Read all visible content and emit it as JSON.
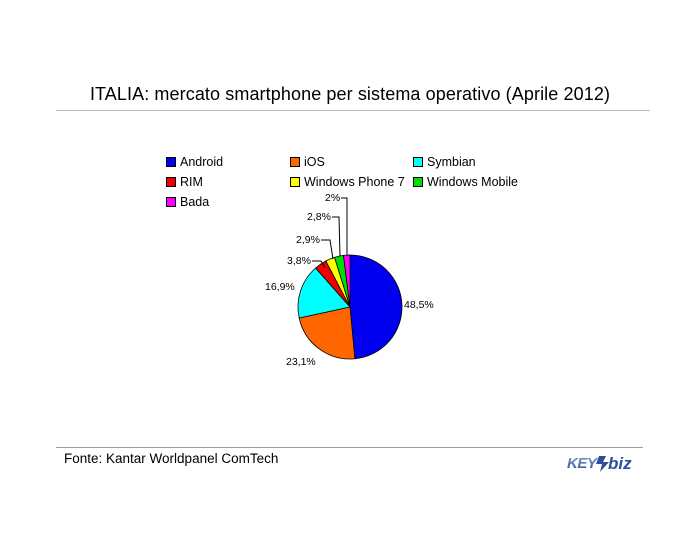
{
  "chart_data": {
    "type": "pie",
    "title": "ITALIA: mercato smartphone per sistema operativo (Aprile 2012)",
    "slices": [
      {
        "label": "Android",
        "value": 48.5,
        "value_label": "48,5%",
        "color": "#0000ee"
      },
      {
        "label": "iOS",
        "value": 23.1,
        "value_label": "23,1%",
        "color": "#ff6600"
      },
      {
        "label": "Symbian",
        "value": 16.9,
        "value_label": "16,9%",
        "color": "#00ffff"
      },
      {
        "label": "RIM",
        "value": 3.8,
        "value_label": "3,8%",
        "color": "#ee0000"
      },
      {
        "label": "Windows Phone 7",
        "value": 2.9,
        "value_label": "2,9%",
        "color": "#ffff00"
      },
      {
        "label": "Windows Mobile",
        "value": 2.8,
        "value_label": "2,8%",
        "color": "#00dd00"
      },
      {
        "label": "Bada",
        "value": 2.0,
        "value_label": "2%",
        "color": "#ff00ff"
      }
    ],
    "legend_position": "top"
  },
  "source": "Fonte: Kantar Worldpanel ComTech",
  "logo": {
    "text": "KEY4biz"
  }
}
